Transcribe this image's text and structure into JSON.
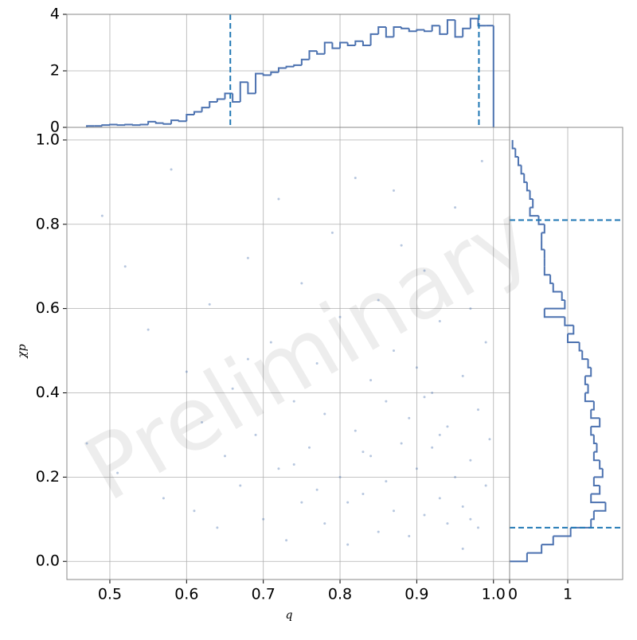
{
  "chart_data": [
    {
      "type": "scatter",
      "xlabel": "q",
      "ylabel": "χp",
      "annotation": "Preliminary",
      "color": "#4c72b0",
      "grid": true,
      "xlim": [
        0.444,
        1.021
      ],
      "ylim": [
        -0.043,
        1.03
      ],
      "xticks": [
        0.5,
        0.6,
        0.7,
        0.8,
        0.9,
        {
          "value": 1.0,
          "label": "1.0"
        }
      ],
      "yticks": [
        {
          "value": 0,
          "label": "0.0"
        },
        0.2,
        0.4,
        0.6,
        0.8,
        {
          "value": 1.0,
          "label": "1.0"
        }
      ],
      "x": [
        0.47,
        0.49,
        0.51,
        0.52,
        0.55,
        0.57,
        0.58,
        0.6,
        0.61,
        0.62,
        0.63,
        0.64,
        0.65,
        0.66,
        0.67,
        0.68,
        0.69,
        0.7,
        0.71,
        0.72,
        0.72,
        0.73,
        0.74,
        0.75,
        0.75,
        0.76,
        0.77,
        0.78,
        0.78,
        0.79,
        0.8,
        0.8,
        0.81,
        0.82,
        0.82,
        0.83,
        0.84,
        0.84,
        0.85,
        0.85,
        0.86,
        0.86,
        0.87,
        0.87,
        0.88,
        0.88,
        0.89,
        0.89,
        0.9,
        0.9,
        0.91,
        0.91,
        0.92,
        0.92,
        0.93,
        0.93,
        0.94,
        0.94,
        0.95,
        0.95,
        0.96,
        0.96,
        0.97,
        0.97,
        0.98,
        0.98,
        0.99,
        0.99,
        0.995,
        0.985,
        0.74,
        0.81,
        0.87,
        0.93,
        0.96,
        0.68,
        0.77,
        0.83,
        0.91,
        0.97
      ],
      "y": [
        0.28,
        0.82,
        0.21,
        0.7,
        0.55,
        0.15,
        0.93,
        0.45,
        0.12,
        0.33,
        0.61,
        0.08,
        0.25,
        0.41,
        0.18,
        0.72,
        0.3,
        0.1,
        0.52,
        0.22,
        0.86,
        0.05,
        0.38,
        0.14,
        0.66,
        0.27,
        0.47,
        0.09,
        0.35,
        0.78,
        0.2,
        0.58,
        0.04,
        0.31,
        0.91,
        0.16,
        0.43,
        0.25,
        0.07,
        0.62,
        0.19,
        0.38,
        0.12,
        0.5,
        0.28,
        0.75,
        0.06,
        0.34,
        0.22,
        0.46,
        0.11,
        0.69,
        0.27,
        0.4,
        0.15,
        0.57,
        0.09,
        0.32,
        0.2,
        0.84,
        0.13,
        0.44,
        0.24,
        0.6,
        0.08,
        0.36,
        0.18,
        0.52,
        0.29,
        0.95,
        0.23,
        0.14,
        0.88,
        0.3,
        0.03,
        0.48,
        0.17,
        0.26,
        0.39,
        0.1
      ]
    },
    {
      "type": "histogram",
      "color": "#4c72b0",
      "line_color": "#1f77b4",
      "grid": true,
      "xlim": [
        0.444,
        1.021
      ],
      "ylim": [
        0,
        4
      ],
      "yticks": [
        0,
        2,
        4
      ],
      "vlines": [
        0.657,
        0.981
      ],
      "bins": [
        0.47,
        0.48,
        0.49,
        0.5,
        0.51,
        0.52,
        0.53,
        0.54,
        0.55,
        0.56,
        0.57,
        0.58,
        0.59,
        0.6,
        0.61,
        0.62,
        0.63,
        0.64,
        0.65,
        0.66,
        0.67,
        0.68,
        0.69,
        0.7,
        0.71,
        0.72,
        0.73,
        0.74,
        0.75,
        0.76,
        0.77,
        0.78,
        0.79,
        0.8,
        0.81,
        0.82,
        0.83,
        0.84,
        0.85,
        0.86,
        0.87,
        0.88,
        0.89,
        0.9,
        0.91,
        0.92,
        0.93,
        0.94,
        0.95,
        0.96,
        0.97,
        0.98,
        0.99,
        1.0
      ],
      "counts": [
        0.05,
        0.05,
        0.08,
        0.1,
        0.08,
        0.1,
        0.08,
        0.1,
        0.2,
        0.15,
        0.12,
        0.25,
        0.22,
        0.45,
        0.55,
        0.7,
        0.9,
        1.0,
        1.2,
        0.9,
        1.6,
        1.2,
        1.9,
        1.85,
        1.95,
        2.1,
        2.15,
        2.2,
        2.4,
        2.7,
        2.6,
        3.0,
        2.8,
        3.0,
        2.9,
        3.05,
        2.9,
        3.3,
        3.55,
        3.2,
        3.55,
        3.5,
        3.4,
        3.45,
        3.4,
        3.6,
        3.3,
        3.8,
        3.2,
        3.5,
        3.85,
        3.6,
        3.6
      ]
    },
    {
      "type": "histogram",
      "orientation": "horizontal",
      "color": "#4c72b0",
      "line_color": "#1f77b4",
      "grid": true,
      "xlim": [
        0,
        1.945
      ],
      "xticks": [
        0,
        1
      ],
      "ylim": [
        -0.043,
        1.03
      ],
      "hlines": [
        0.08,
        0.81
      ],
      "bins": [
        0,
        0.02,
        0.04,
        0.06,
        0.08,
        0.1,
        0.12,
        0.14,
        0.16,
        0.18,
        0.2,
        0.22,
        0.24,
        0.26,
        0.28,
        0.3,
        0.32,
        0.34,
        0.36,
        0.38,
        0.4,
        0.42,
        0.44,
        0.46,
        0.48,
        0.5,
        0.52,
        0.54,
        0.56,
        0.58,
        0.6,
        0.62,
        0.64,
        0.66,
        0.68,
        0.7,
        0.72,
        0.74,
        0.76,
        0.78,
        0.8,
        0.82,
        0.84,
        0.86,
        0.88,
        0.9,
        0.92,
        0.94,
        0.96,
        0.98,
        1.0
      ],
      "counts": [
        0.3,
        0.55,
        0.75,
        1.05,
        1.4,
        1.45,
        1.65,
        1.4,
        1.55,
        1.45,
        1.6,
        1.55,
        1.45,
        1.5,
        1.45,
        1.4,
        1.55,
        1.4,
        1.45,
        1.3,
        1.35,
        1.3,
        1.4,
        1.35,
        1.25,
        1.2,
        1.0,
        1.1,
        0.95,
        0.6,
        0.95,
        0.9,
        0.75,
        0.7,
        0.6,
        0.6,
        0.6,
        0.55,
        0.55,
        0.6,
        0.5,
        0.35,
        0.4,
        0.35,
        0.3,
        0.25,
        0.2,
        0.15,
        0.1,
        0.05
      ]
    }
  ]
}
